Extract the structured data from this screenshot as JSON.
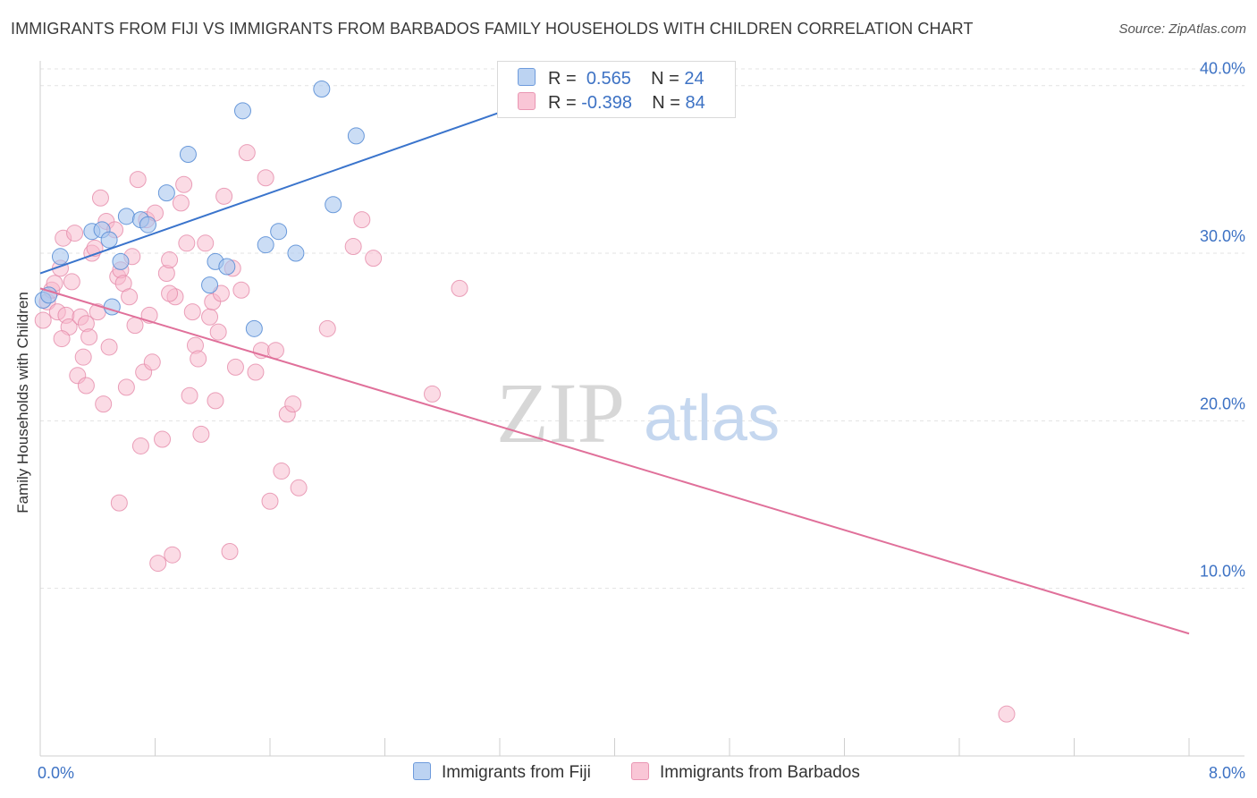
{
  "title": "IMMIGRANTS FROM FIJI VS IMMIGRANTS FROM BARBADOS FAMILY HOUSEHOLDS WITH CHILDREN CORRELATION CHART",
  "source": "Source: ZipAtlas.com",
  "watermark": {
    "zip": "ZIP",
    "atlas": "atlas"
  },
  "legend": {
    "fiji": {
      "r_label": "R =",
      "r_value": "0.565",
      "n_label": "N =",
      "n_value": "24"
    },
    "barbados": {
      "r_label": "R =",
      "r_value": "-0.398",
      "n_label": "N =",
      "n_value": "84"
    }
  },
  "bottom_legend": {
    "fiji": "Immigrants from Fiji",
    "barbados": "Immigrants from Barbados"
  },
  "colors": {
    "fiji_fill": "#a9c6ee",
    "fiji_stroke": "#5b8fd6",
    "fiji_line": "#3a74cc",
    "barbados_fill": "#f7b8cc",
    "barbados_stroke": "#e58aa9",
    "barbados_line": "#e0709a",
    "axis_label": "#3d72c4",
    "grid": "#e3e3e3"
  },
  "chart_data": {
    "type": "scatter",
    "title": "IMMIGRANTS FROM FIJI VS IMMIGRANTS FROM BARBADOS FAMILY HOUSEHOLDS WITH CHILDREN CORRELATION CHART",
    "xlabel": "",
    "ylabel": "Family Households with Children",
    "xlim": [
      0,
      8
    ],
    "ylim": [
      0,
      41
    ],
    "x_ticks": [
      "0.0%",
      "8.0%"
    ],
    "y_ticks": [
      {
        "value": 10,
        "label": "10.0%"
      },
      {
        "value": 20,
        "label": "20.0%"
      },
      {
        "value": 30,
        "label": "30.0%"
      },
      {
        "value": 40,
        "label": "40.0%"
      }
    ],
    "grid": true,
    "legend_position": "top-center",
    "series": [
      {
        "name": "Immigrants from Fiji",
        "color": "#a9c6ee",
        "trend": {
          "x": [
            0.0,
            3.8
          ],
          "y": [
            28.8,
            40.2
          ]
        },
        "points": [
          [
            0.02,
            27.2
          ],
          [
            0.06,
            27.5
          ],
          [
            0.14,
            29.8
          ],
          [
            0.36,
            31.3
          ],
          [
            0.43,
            31.4
          ],
          [
            0.48,
            30.8
          ],
          [
            0.5,
            26.8
          ],
          [
            0.56,
            29.5
          ],
          [
            0.6,
            32.2
          ],
          [
            0.7,
            32.0
          ],
          [
            0.75,
            31.7
          ],
          [
            0.88,
            33.6
          ],
          [
            1.03,
            35.9
          ],
          [
            1.18,
            28.1
          ],
          [
            1.22,
            29.5
          ],
          [
            1.3,
            29.2
          ],
          [
            1.41,
            38.5
          ],
          [
            1.49,
            25.5
          ],
          [
            1.57,
            30.5
          ],
          [
            1.66,
            31.3
          ],
          [
            1.78,
            30.0
          ],
          [
            1.96,
            39.8
          ],
          [
            2.04,
            32.9
          ],
          [
            2.2,
            37.0
          ]
        ]
      },
      {
        "name": "Immigrants from Barbados",
        "color": "#f7b8cc",
        "trend": {
          "x": [
            0.0,
            8.0
          ],
          "y": [
            27.9,
            7.3
          ]
        },
        "points": [
          [
            0.02,
            26.0
          ],
          [
            0.05,
            27.1
          ],
          [
            0.08,
            27.8
          ],
          [
            0.1,
            28.2
          ],
          [
            0.12,
            26.5
          ],
          [
            0.14,
            29.1
          ],
          [
            0.16,
            30.9
          ],
          [
            0.18,
            26.3
          ],
          [
            0.2,
            25.6
          ],
          [
            0.22,
            28.3
          ],
          [
            0.24,
            31.2
          ],
          [
            0.26,
            22.7
          ],
          [
            0.28,
            26.2
          ],
          [
            0.3,
            23.8
          ],
          [
            0.32,
            25.8
          ],
          [
            0.34,
            25.0
          ],
          [
            0.36,
            30.0
          ],
          [
            0.38,
            30.3
          ],
          [
            0.4,
            26.5
          ],
          [
            0.42,
            33.3
          ],
          [
            0.44,
            21.0
          ],
          [
            0.46,
            31.9
          ],
          [
            0.48,
            24.4
          ],
          [
            0.52,
            31.4
          ],
          [
            0.54,
            28.6
          ],
          [
            0.56,
            29.0
          ],
          [
            0.58,
            28.2
          ],
          [
            0.6,
            22.0
          ],
          [
            0.62,
            27.4
          ],
          [
            0.64,
            29.8
          ],
          [
            0.66,
            25.7
          ],
          [
            0.68,
            34.4
          ],
          [
            0.7,
            18.5
          ],
          [
            0.72,
            22.9
          ],
          [
            0.74,
            32.0
          ],
          [
            0.76,
            26.3
          ],
          [
            0.8,
            32.4
          ],
          [
            0.82,
            11.5
          ],
          [
            0.85,
            18.9
          ],
          [
            0.88,
            28.8
          ],
          [
            0.9,
            29.6
          ],
          [
            0.92,
            12.0
          ],
          [
            0.94,
            27.4
          ],
          [
            0.98,
            33.0
          ],
          [
            1.0,
            34.1
          ],
          [
            1.02,
            30.6
          ],
          [
            1.04,
            21.5
          ],
          [
            1.06,
            26.5
          ],
          [
            1.08,
            24.5
          ],
          [
            1.1,
            23.7
          ],
          [
            1.12,
            19.2
          ],
          [
            1.15,
            30.6
          ],
          [
            1.18,
            26.2
          ],
          [
            1.2,
            27.1
          ],
          [
            1.22,
            21.2
          ],
          [
            1.24,
            25.3
          ],
          [
            1.26,
            27.6
          ],
          [
            1.28,
            33.4
          ],
          [
            1.32,
            12.2
          ],
          [
            1.34,
            29.1
          ],
          [
            1.36,
            23.2
          ],
          [
            1.4,
            27.8
          ],
          [
            1.44,
            36.0
          ],
          [
            1.5,
            22.9
          ],
          [
            1.54,
            24.2
          ],
          [
            1.57,
            34.5
          ],
          [
            1.6,
            15.2
          ],
          [
            1.64,
            24.2
          ],
          [
            1.68,
            17.0
          ],
          [
            1.72,
            20.4
          ],
          [
            1.76,
            21.0
          ],
          [
            1.8,
            16.0
          ],
          [
            2.0,
            25.5
          ],
          [
            2.18,
            30.4
          ],
          [
            2.24,
            32.0
          ],
          [
            2.32,
            29.7
          ],
          [
            2.73,
            21.6
          ],
          [
            2.92,
            27.9
          ],
          [
            6.73,
            2.5
          ],
          [
            0.15,
            24.9
          ],
          [
            0.32,
            22.1
          ],
          [
            0.55,
            15.1
          ],
          [
            0.9,
            27.6
          ],
          [
            0.78,
            23.5
          ]
        ]
      }
    ]
  }
}
